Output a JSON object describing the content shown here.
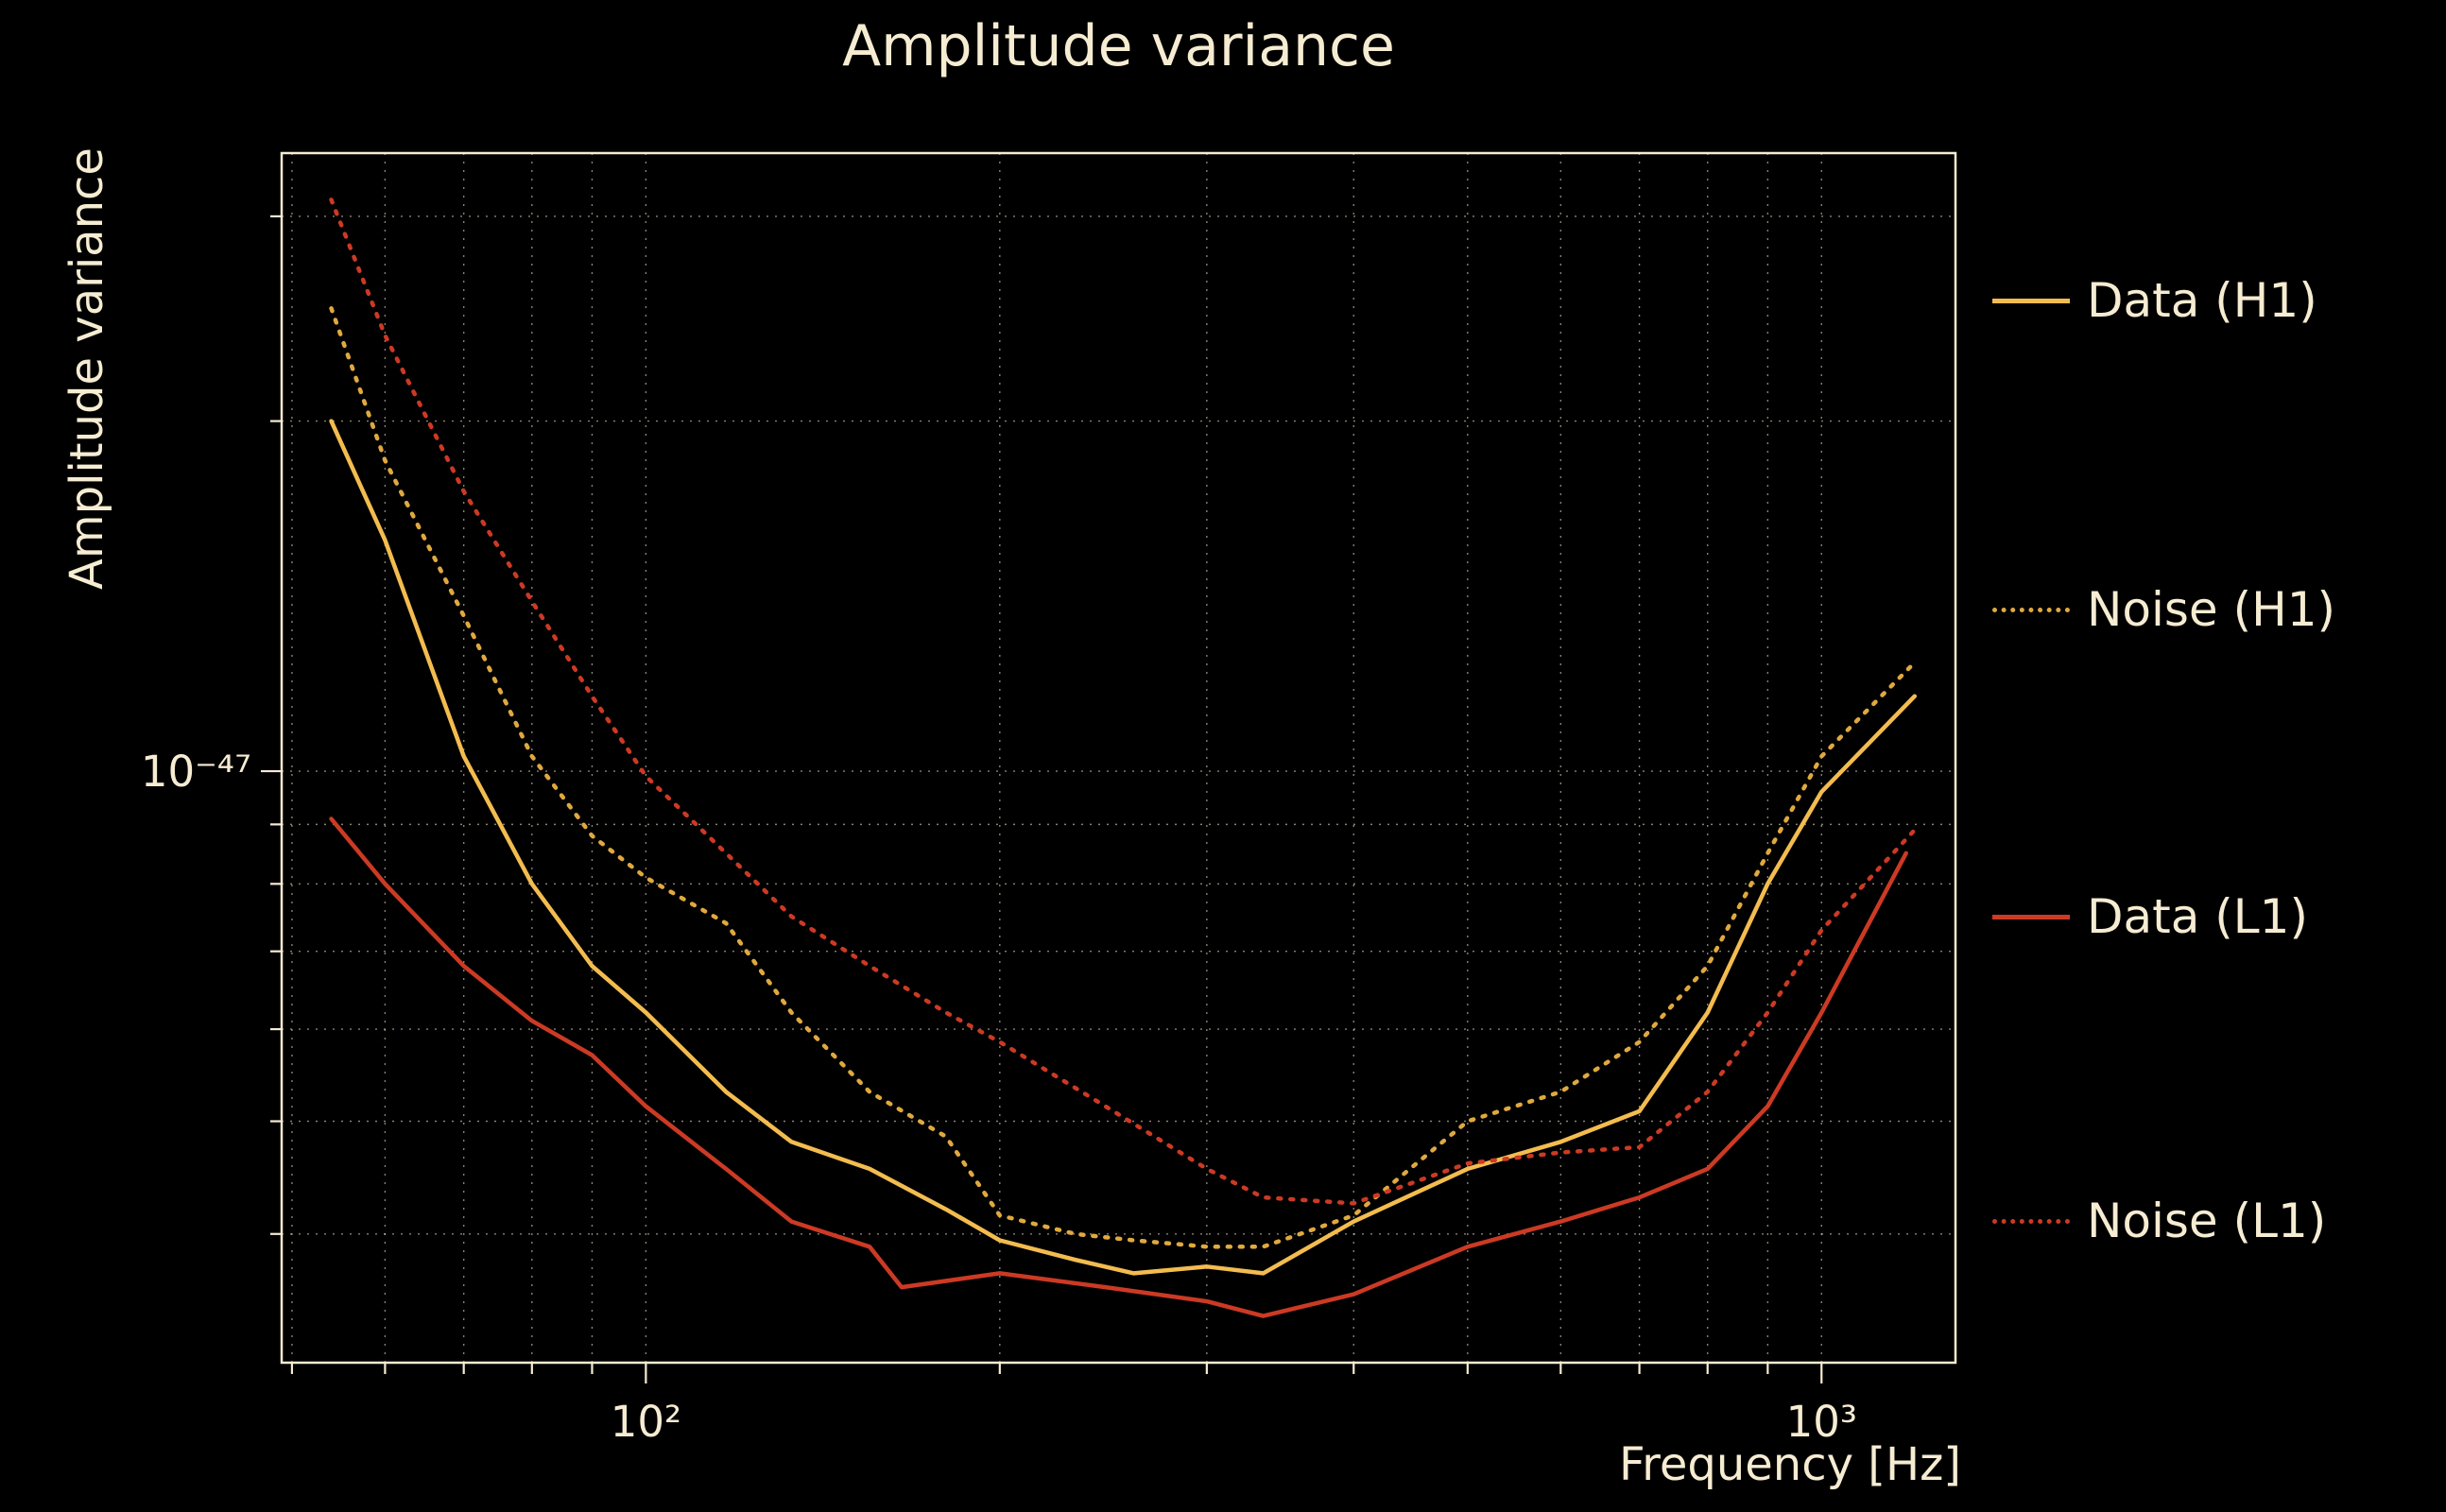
{
  "title": "Amplitude variance",
  "colors": {
    "background": "#000000",
    "text": "#f6ecd2",
    "grid": "#f6ecd2",
    "h1_gold": "#f3bc4f",
    "h1_gold_dotted": "#e0a93f",
    "l1_red": "#cc3a24"
  },
  "axes": {
    "xlabel": "Frequency [Hz]",
    "ylabel": "Amplitude variance",
    "xscale": "log",
    "yscale": "log",
    "xlim": [
      49,
      1300
    ],
    "ylim": [
      3.1e-48,
      3.4e-47
    ],
    "x_major_ticks": [
      {
        "value": 100,
        "label": "10²"
      },
      {
        "value": 1000,
        "label": "10³"
      }
    ],
    "y_major_ticks": [
      {
        "value": 1e-47,
        "label": "10⁻⁴⁷"
      }
    ],
    "x_minor_gridlines": [
      50,
      60,
      70,
      80,
      90,
      200,
      300,
      400,
      500,
      600,
      700,
      800,
      900
    ],
    "y_minor_gridlines": [
      4e-48,
      5e-48,
      6e-48,
      7e-48,
      8e-48,
      9e-48,
      2e-47,
      3e-47
    ],
    "grid": "dotted, both axes"
  },
  "legend": {
    "position": "outside center right",
    "entries": [
      "Data (H1)",
      "Noise (H1)",
      "Data (L1)",
      "Noise (L1)"
    ]
  },
  "chart_data": {
    "type": "line",
    "title": "Amplitude variance",
    "xlabel": "Frequency [Hz]",
    "ylabel": "Amplitude variance",
    "xscale": "log",
    "yscale": "log",
    "series": [
      {
        "name": "Data (H1)",
        "color": "#f3bc4f",
        "line_style": "solid",
        "points": [
          [
            54,
            2e-47
          ],
          [
            60,
            1.58e-47
          ],
          [
            70,
            1.03e-47
          ],
          [
            80,
            8e-48
          ],
          [
            90,
            6.8e-48
          ],
          [
            100,
            6.2e-48
          ],
          [
            117,
            5.3e-48
          ],
          [
            133,
            4.8e-48
          ],
          [
            155,
            4.55e-48
          ],
          [
            180,
            4.2e-48
          ],
          [
            200,
            3.95e-48
          ],
          [
            232,
            3.8e-48
          ],
          [
            260,
            3.7e-48
          ],
          [
            300,
            3.75e-48
          ],
          [
            335,
            3.7e-48
          ],
          [
            400,
            4.1e-48
          ],
          [
            500,
            4.55e-48
          ],
          [
            600,
            4.8e-48
          ],
          [
            700,
            5.1e-48
          ],
          [
            800,
            6.2e-48
          ],
          [
            900,
            8e-48
          ],
          [
            1000,
            9.6e-48
          ],
          [
            1200,
            1.16e-47
          ]
        ]
      },
      {
        "name": "Noise (H1)",
        "color": "#e0a93f",
        "line_style": "dotted",
        "points": [
          [
            54,
            2.5e-47
          ],
          [
            60,
            1.85e-47
          ],
          [
            70,
            1.36e-47
          ],
          [
            80,
            1.03e-47
          ],
          [
            90,
            8.8e-48
          ],
          [
            100,
            8.1e-48
          ],
          [
            117,
            7.4e-48
          ],
          [
            133,
            6.2e-48
          ],
          [
            155,
            5.3e-48
          ],
          [
            180,
            4.85e-48
          ],
          [
            200,
            4.15e-48
          ],
          [
            232,
            4e-48
          ],
          [
            260,
            3.95e-48
          ],
          [
            300,
            3.9e-48
          ],
          [
            335,
            3.9e-48
          ],
          [
            400,
            4.15e-48
          ],
          [
            500,
            5e-48
          ],
          [
            600,
            5.3e-48
          ],
          [
            700,
            5.85e-48
          ],
          [
            800,
            6.8e-48
          ],
          [
            900,
            8.5e-48
          ],
          [
            1000,
            1.03e-47
          ],
          [
            1200,
            1.24e-47
          ]
        ]
      },
      {
        "name": "Data (L1)",
        "color": "#cc3a24",
        "line_style": "solid",
        "points": [
          [
            54,
            9.1e-48
          ],
          [
            60,
            8e-48
          ],
          [
            70,
            6.8e-48
          ],
          [
            80,
            6.1e-48
          ],
          [
            90,
            5.7e-48
          ],
          [
            100,
            5.15e-48
          ],
          [
            117,
            4.55e-48
          ],
          [
            133,
            4.1e-48
          ],
          [
            155,
            3.9e-48
          ],
          [
            165,
            3.6e-48
          ],
          [
            200,
            3.7e-48
          ],
          [
            246,
            3.6e-48
          ],
          [
            300,
            3.5e-48
          ],
          [
            335,
            3.4e-48
          ],
          [
            400,
            3.55e-48
          ],
          [
            500,
            3.9e-48
          ],
          [
            600,
            4.1e-48
          ],
          [
            700,
            4.3e-48
          ],
          [
            800,
            4.55e-48
          ],
          [
            900,
            5.15e-48
          ],
          [
            1000,
            6.2e-48
          ],
          [
            1180,
            8.5e-48
          ]
        ]
      },
      {
        "name": "Noise (L1)",
        "color": "#cc3a24",
        "line_style": "dotted",
        "points": [
          [
            54,
            3.1e-47
          ],
          [
            60,
            2.37e-47
          ],
          [
            70,
            1.74e-47
          ],
          [
            80,
            1.4e-47
          ],
          [
            90,
            1.16e-47
          ],
          [
            100,
            9.9e-48
          ],
          [
            117,
            8.5e-48
          ],
          [
            133,
            7.5e-48
          ],
          [
            155,
            6.8e-48
          ],
          [
            180,
            6.2e-48
          ],
          [
            200,
            5.85e-48
          ],
          [
            246,
            5.15e-48
          ],
          [
            300,
            4.55e-48
          ],
          [
            335,
            4.3e-48
          ],
          [
            400,
            4.25e-48
          ],
          [
            500,
            4.6e-48
          ],
          [
            600,
            4.7e-48
          ],
          [
            700,
            4.75e-48
          ],
          [
            800,
            5.3e-48
          ],
          [
            900,
            6.2e-48
          ],
          [
            1000,
            7.3e-48
          ],
          [
            1200,
            8.9e-48
          ]
        ]
      }
    ]
  }
}
